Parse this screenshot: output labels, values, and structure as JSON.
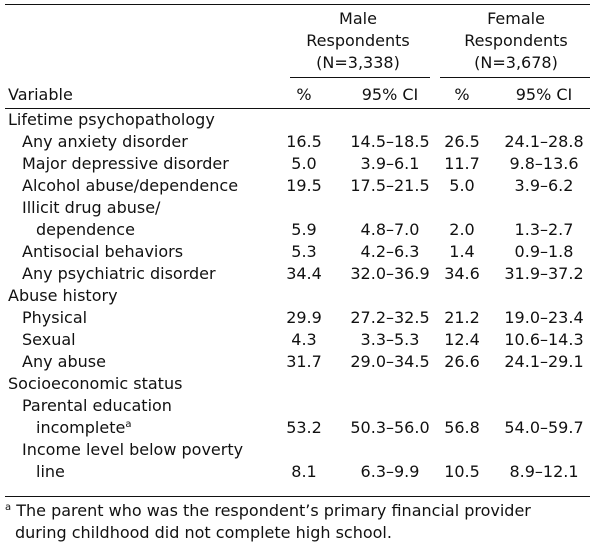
{
  "header": {
    "groups": [
      {
        "line1": "Male",
        "line2": "Respondents",
        "line3": "(N=3,338)"
      },
      {
        "line1": "Female",
        "line2": "Respondents",
        "line3": "(N=3,678)"
      }
    ],
    "variable": "Variable",
    "pct": "%",
    "ci": "95% CI"
  },
  "rows": [
    {
      "kind": "section",
      "label": "Lifetime psychopathology"
    },
    {
      "kind": "item",
      "label": "Any anxiety disorder",
      "m_pct": "16.5",
      "m_ci": "14.5–18.5",
      "f_pct": "26.5",
      "f_ci": "24.1–28.8"
    },
    {
      "kind": "item",
      "label": "Major depressive disorder",
      "m_pct": "5.0",
      "m_ci": "3.9–6.1",
      "f_pct": "11.7",
      "f_ci": "9.8–13.6"
    },
    {
      "kind": "item",
      "label": "Alcohol abuse/dependence",
      "m_pct": "19.5",
      "m_ci": "17.5–21.5",
      "f_pct": "5.0",
      "f_ci": "3.9–6.2"
    },
    {
      "kind": "wrap1",
      "label": "Illicit drug abuse/"
    },
    {
      "kind": "wrap2",
      "label": "dependence",
      "m_pct": "5.9",
      "m_ci": "4.8–7.0",
      "f_pct": "2.0",
      "f_ci": "1.3–2.7"
    },
    {
      "kind": "item",
      "label": "Antisocial behaviors",
      "m_pct": "5.3",
      "m_ci": "4.2–6.3",
      "f_pct": "1.4",
      "f_ci": "0.9–1.8"
    },
    {
      "kind": "item",
      "label": "Any psychiatric disorder",
      "m_pct": "34.4",
      "m_ci": "32.0–36.9",
      "f_pct": "34.6",
      "f_ci": "31.9–37.2"
    },
    {
      "kind": "section",
      "label": "Abuse history"
    },
    {
      "kind": "item",
      "label": "Physical",
      "m_pct": "29.9",
      "m_ci": "27.2–32.5",
      "f_pct": "21.2",
      "f_ci": "19.0–23.4"
    },
    {
      "kind": "item",
      "label": "Sexual",
      "m_pct": "4.3",
      "m_ci": "3.3–5.3",
      "f_pct": "12.4",
      "f_ci": "10.6–14.3"
    },
    {
      "kind": "item",
      "label": "Any abuse",
      "m_pct": "31.7",
      "m_ci": "29.0–34.5",
      "f_pct": "26.6",
      "f_ci": "24.1–29.1"
    },
    {
      "kind": "section",
      "label": "Socioeconomic status"
    },
    {
      "kind": "wrap1",
      "label": "Parental education"
    },
    {
      "kind": "wrap2",
      "label": "incomplete",
      "sup": "a",
      "m_pct": "53.2",
      "m_ci": "50.3–56.0",
      "f_pct": "56.8",
      "f_ci": "54.0–59.7"
    },
    {
      "kind": "wrap1",
      "label": "Income level below poverty"
    },
    {
      "kind": "wrap2",
      "label": "line",
      "m_pct": "8.1",
      "m_ci": "6.3–9.9",
      "f_pct": "10.5",
      "f_ci": "8.9–12.1"
    }
  ],
  "footnote": {
    "mark": "a",
    "line1": " The parent who was the respondent’s primary financial provider",
    "line2": "during childhood did not complete high school."
  }
}
